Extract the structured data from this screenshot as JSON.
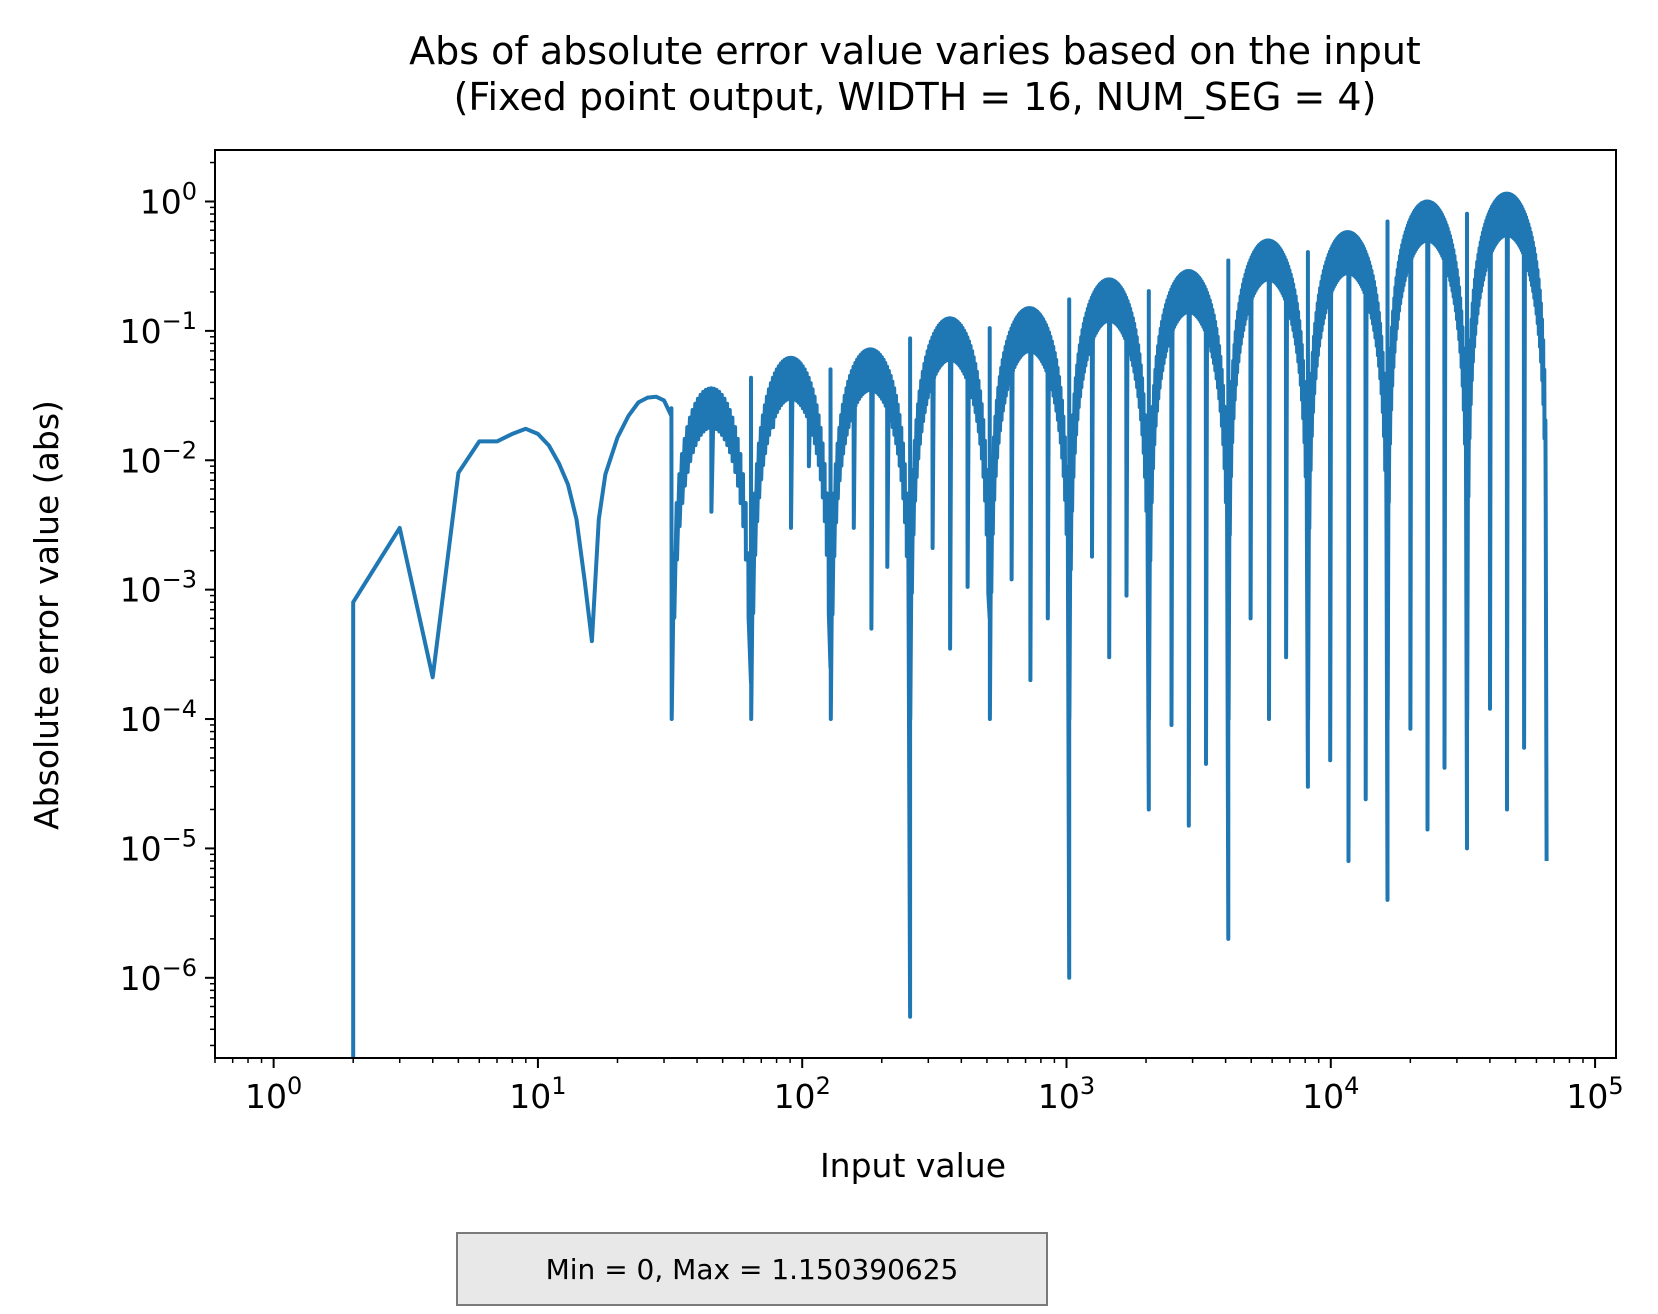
{
  "chart_data": {
    "type": "line",
    "title_line1": "Abs of absolute error value varies based on the input",
    "title_line2": "(Fixed point output, WIDTH = 16, NUM_SEG = 4)",
    "xlabel": "Input value",
    "ylabel": "Absolute error value (abs)",
    "xscale": "log",
    "yscale": "log",
    "xlim": [
      0.6,
      120000
    ],
    "ylim": [
      2.4e-07,
      2.5
    ],
    "x_ticks": [
      {
        "value": 1,
        "base": "10",
        "exp": "0"
      },
      {
        "value": 10,
        "base": "10",
        "exp": "1"
      },
      {
        "value": 100,
        "base": "10",
        "exp": "2"
      },
      {
        "value": 1000,
        "base": "10",
        "exp": "3"
      },
      {
        "value": 10000,
        "base": "10",
        "exp": "4"
      },
      {
        "value": 100000,
        "base": "10",
        "exp": "5"
      }
    ],
    "y_ticks": [
      {
        "value": 1e-06,
        "base": "10",
        "exp": "−6"
      },
      {
        "value": 1e-05,
        "base": "10",
        "exp": "−5"
      },
      {
        "value": 0.0001,
        "base": "10",
        "exp": "−4"
      },
      {
        "value": 0.001,
        "base": "10",
        "exp": "−3"
      },
      {
        "value": 0.01,
        "base": "10",
        "exp": "−2"
      },
      {
        "value": 0.1,
        "base": "10",
        "exp": "−1"
      },
      {
        "value": 1,
        "base": "10",
        "exp": "0"
      }
    ],
    "grid": false,
    "series_color": "#1f77b4",
    "series": [
      {
        "x": [
          2,
          2,
          3,
          4,
          5,
          6,
          7,
          8,
          9,
          10,
          11,
          12,
          13,
          14,
          15,
          16,
          17,
          18,
          20,
          22,
          24,
          26,
          28,
          30,
          32
        ],
        "y": [
          2.4e-07,
          0.0008,
          0.003,
          0.00021,
          0.008,
          0.014,
          0.014,
          0.016,
          0.0175,
          0.016,
          0.013,
          0.0095,
          0.0065,
          0.0035,
          0.0012,
          0.0004,
          0.0035,
          0.0078,
          0.015,
          0.022,
          0.028,
          0.0305,
          0.031,
          0.029,
          0.022
        ]
      }
    ],
    "envelope_segments": [
      {
        "x_start": 32,
        "x_end": 64,
        "peak": 0.036,
        "min_level": 0.018,
        "mid_dip": 0.004,
        "end_dip": 0.00019,
        "n": 30
      },
      {
        "x_start": 64,
        "x_end": 128,
        "peak": 0.062,
        "min_level": 0.03,
        "mid_dip": 0.003,
        "end_dip": 0.00025,
        "n": 40
      },
      {
        "x_start": 128,
        "x_end": 256,
        "peak": 0.072,
        "min_level": 0.035,
        "mid_dip": 0.0005,
        "end_dip": 5e-07,
        "n": 45
      },
      {
        "x_start": 256,
        "x_end": 512,
        "peak": 0.125,
        "min_level": 0.06,
        "mid_dip": 0.00035,
        "end_dip": 0.0006,
        "n": 50
      },
      {
        "x_start": 512,
        "x_end": 1024,
        "peak": 0.15,
        "min_level": 0.07,
        "mid_dip": 0.0002,
        "end_dip": 1e-06,
        "n": 55
      },
      {
        "x_start": 1024,
        "x_end": 2048,
        "peak": 0.25,
        "min_level": 0.12,
        "mid_dip": 0.0003,
        "end_dip": 2e-05,
        "n": 60
      },
      {
        "x_start": 2048,
        "x_end": 4096,
        "peak": 0.29,
        "min_level": 0.14,
        "mid_dip": 1.5e-05,
        "end_dip": 2e-06,
        "n": 60
      },
      {
        "x_start": 4096,
        "x_end": 8192,
        "peak": 0.5,
        "min_level": 0.25,
        "mid_dip": 0.0001,
        "end_dip": 3e-05,
        "n": 65
      },
      {
        "x_start": 8192,
        "x_end": 16384,
        "peak": 0.58,
        "min_level": 0.28,
        "mid_dip": 8e-06,
        "end_dip": 4e-06,
        "n": 65
      },
      {
        "x_start": 16384,
        "x_end": 32768,
        "peak": 1.0,
        "min_level": 0.5,
        "mid_dip": 1.4e-05,
        "end_dip": 1e-05,
        "n": 70
      },
      {
        "x_start": 32768,
        "x_end": 65536,
        "peak": 1.15,
        "min_level": 0.55,
        "mid_dip": 2e-05,
        "end_dip": 8e-06,
        "n": 70
      }
    ]
  },
  "annotation": {
    "text": "Min = 0, Max = 1.150390625"
  }
}
